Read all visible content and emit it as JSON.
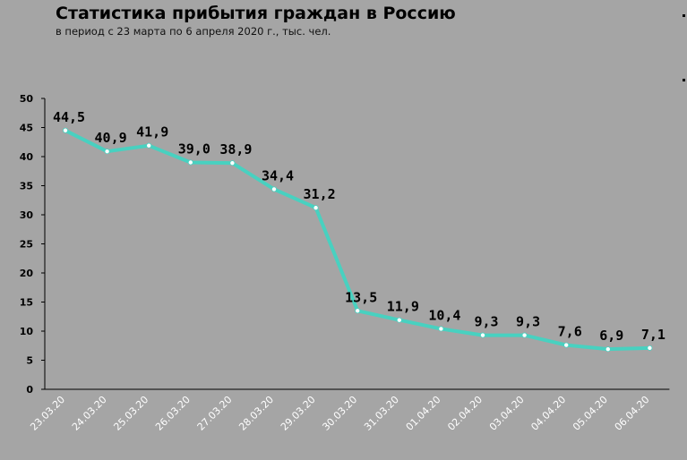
{
  "title": "Статистика прибытия граждан в Россию",
  "subtitle": "в период с 23 марта по 6 апреля 2020 г., тыс. чел.",
  "colors": {
    "background": "#a5a5a5",
    "line": "#48d1c0",
    "axis": "#000000"
  },
  "chart_data": {
    "type": "line",
    "title": "Статистика прибытия граждан в Россию",
    "subtitle": "в период с 23 марта по 6 апреля 2020 г., тыс. чел.",
    "categories": [
      "23.03.20",
      "24.03.20",
      "25.03.20",
      "26.03.20",
      "27.03.20",
      "28.03.20",
      "29.03.20",
      "30.03.20",
      "31.03.20",
      "01.04.20",
      "02.04.20",
      "03.04.20",
      "04.04.20",
      "05.04.20",
      "06.04.20"
    ],
    "values": [
      44.5,
      40.9,
      41.9,
      39.0,
      38.9,
      34.4,
      31.2,
      13.5,
      11.9,
      10.4,
      9.3,
      9.3,
      7.6,
      6.9,
      7.1
    ],
    "data_labels": [
      "44,5",
      "40,9",
      "41,9",
      "39,0",
      "38,9",
      "34,4",
      "31,2",
      "13,5",
      "11,9",
      "10,4",
      "9,3",
      "9,3",
      "7,6",
      "6,9",
      "7,1"
    ],
    "ylim": [
      0,
      50
    ],
    "yticks": [
      "0",
      "5",
      "10",
      "15",
      "20",
      "25",
      "30",
      "35",
      "40",
      "45",
      "50"
    ],
    "grid": false,
    "legend": "none"
  }
}
